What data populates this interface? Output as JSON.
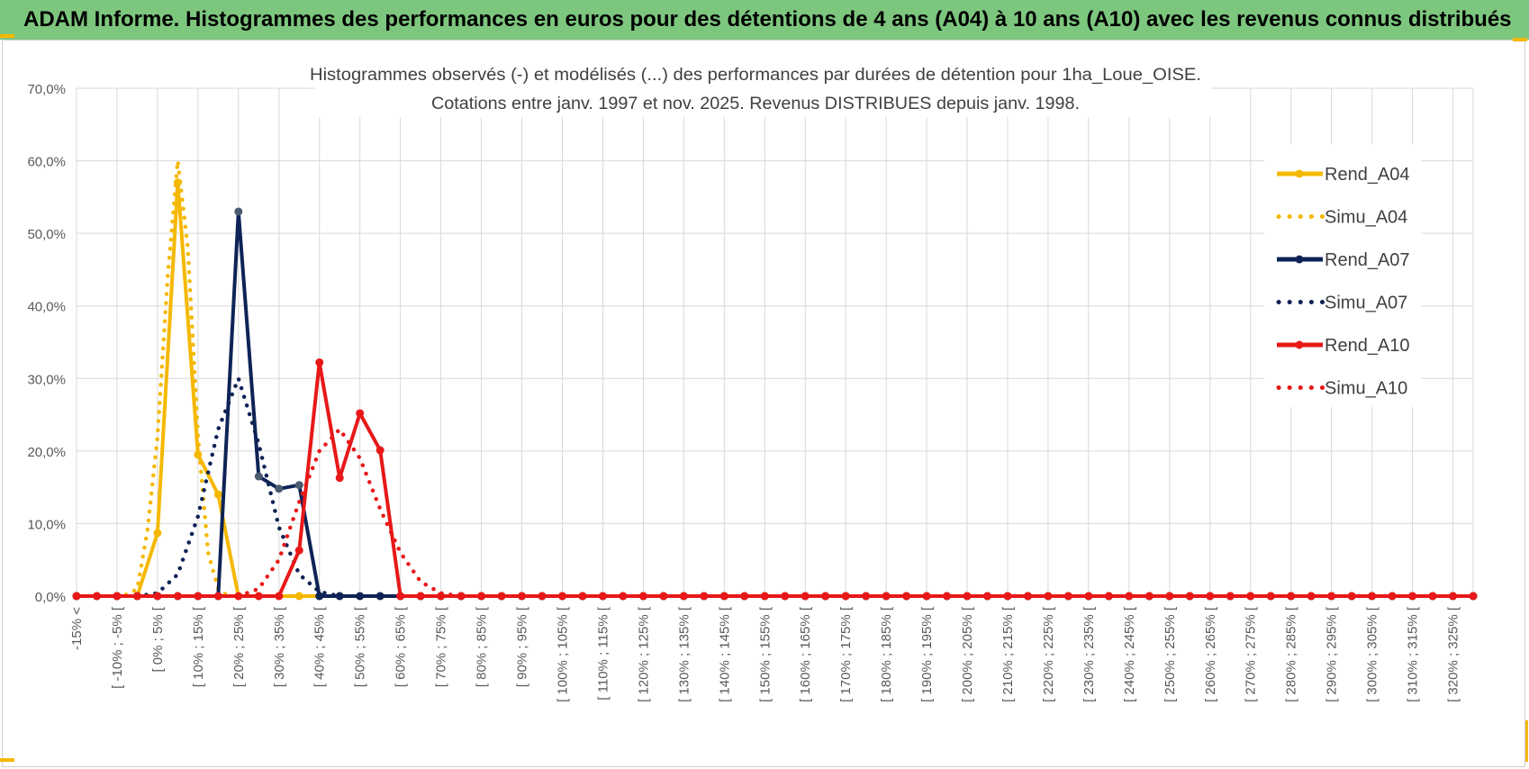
{
  "header": {
    "title": "ADAM Informe. Histogrammes des performances en euros pour des détentions de 4 ans (A04) à 10 ans (A10) avec les revenus connus distribués"
  },
  "colors": {
    "header_bg": "#7dc67e",
    "grid": "#d9d9d9",
    "corner_accent": "#f5b800"
  },
  "chart_data": {
    "type": "line",
    "title_line1": "Histogrammes observés (-) et modélisés (...) des performances par durées de détention pour 1ha_Loue_OISE.",
    "title_line2": "Cotations entre janv. 1997 et nov. 2025. Revenus DISTRIBUES depuis janv. 1998.",
    "ylim": [
      0,
      0.7
    ],
    "y_ticks": [
      0,
      0.1,
      0.2,
      0.3,
      0.4,
      0.5,
      0.6,
      0.7
    ],
    "y_tick_labels": [
      "0,0%",
      "10,0%",
      "20,0%",
      "30,0%",
      "40,0%",
      "50,0%",
      "60,0%",
      "70,0%"
    ],
    "grid": true,
    "legend_position": "right",
    "x_labels": [
      "-15% <",
      "[ -10% ; -5% [",
      "[ 0% ; 5% [",
      "[ 10% ; 15% [",
      "[ 20% ; 25% [",
      "[ 30% ; 35% [",
      "[ 40% ; 45% [",
      "[ 50% ; 55% [",
      "[ 60% ; 65% [",
      "[ 70% ; 75% [",
      "[ 80% ; 85% [",
      "[ 90% ; 95% [",
      "[ 100% ; 105% [",
      "[ 110% ; 115% [",
      "[ 120% ; 125% [",
      "[ 130% ; 135% [",
      "[ 140% ; 145% [",
      "[ 150% ; 155% [",
      "[ 160% ; 165% [",
      "[ 170% ; 175% [",
      "[ 180% ; 185% [",
      "[ 190% ; 195% [",
      "[ 200% ; 205% [",
      "[ 210% ; 215% [",
      "[ 220% ; 225% [",
      "[ 230% ; 235% [",
      "[ 240% ; 245% [",
      "[ 250% ; 255% [",
      "[ 260% ; 265% [",
      "[ 270% ; 275% [",
      "[ 280% ; 285% [",
      "[ 290% ; 295% [",
      "[ 300% ; 305% [",
      "[ 310% ; 315% [",
      "[ 320% ; 325% ["
    ],
    "x_bins": [
      -15,
      -10,
      -5,
      0,
      5,
      10,
      15,
      20,
      25,
      30,
      35,
      40,
      45,
      50,
      55,
      60,
      65,
      70,
      75,
      80,
      85,
      90,
      95,
      100,
      105,
      110,
      115,
      120,
      125,
      130,
      135,
      140,
      145,
      150,
      155,
      160,
      165,
      170,
      175,
      180,
      185,
      190,
      195,
      200,
      205,
      210,
      215,
      220,
      225,
      230,
      235,
      240,
      245,
      250,
      255,
      260,
      265,
      270,
      275,
      280,
      285,
      290,
      295,
      300,
      305,
      310,
      315,
      320,
      325,
      330
    ],
    "series": [
      {
        "name": "Rend_A04",
        "style": "solid",
        "color": "#f5b800",
        "marker": true,
        "points": [
          [
            0,
            0.0
          ],
          [
            5,
            0.087
          ],
          [
            10,
            0.57
          ],
          [
            15,
            0.195
          ],
          [
            20,
            0.14
          ],
          [
            25,
            0.0
          ],
          [
            45,
            0.0
          ]
        ]
      },
      {
        "name": "Simu_A04",
        "style": "dotted",
        "color": "#f5b800",
        "marker": false,
        "points": [
          [
            -5,
            0.0
          ],
          [
            -2,
            0.003
          ],
          [
            0,
            0.01
          ],
          [
            2.5,
            0.09
          ],
          [
            5,
            0.22
          ],
          [
            7.5,
            0.44
          ],
          [
            10,
            0.6
          ],
          [
            12.5,
            0.48
          ],
          [
            15,
            0.22
          ],
          [
            17.5,
            0.06
          ],
          [
            20,
            0.01
          ],
          [
            22.5,
            0.0
          ]
        ]
      },
      {
        "name": "Rend_A07",
        "style": "solid",
        "color": "#0e2356",
        "marker": true,
        "points": [
          [
            20,
            0.0
          ],
          [
            25,
            0.53
          ],
          [
            30,
            0.165
          ],
          [
            35,
            0.148
          ],
          [
            40,
            0.153
          ],
          [
            45,
            0.0
          ],
          [
            50,
            0.0
          ],
          [
            55,
            0.0
          ],
          [
            60,
            0.0
          ],
          [
            65,
            0.0
          ]
        ]
      },
      {
        "name": "Simu_A07",
        "style": "dotted",
        "color": "#0e2356",
        "marker": false,
        "points": [
          [
            0,
            0.0
          ],
          [
            5,
            0.004
          ],
          [
            10,
            0.03
          ],
          [
            15,
            0.11
          ],
          [
            20,
            0.23
          ],
          [
            25,
            0.3
          ],
          [
            30,
            0.21
          ],
          [
            35,
            0.095
          ],
          [
            40,
            0.03
          ],
          [
            45,
            0.006
          ],
          [
            50,
            0.0
          ]
        ]
      },
      {
        "name": "Rend_A10",
        "style": "solid",
        "color": "#e81818",
        "marker": true,
        "points": [
          [
            35,
            0.0
          ],
          [
            40,
            0.063
          ],
          [
            45,
            0.322
          ],
          [
            50,
            0.163
          ],
          [
            55,
            0.252
          ],
          [
            60,
            0.201
          ],
          [
            65,
            0.0
          ]
        ]
      },
      {
        "name": "Simu_A10",
        "style": "dotted",
        "color": "#e81818",
        "marker": false,
        "points": [
          [
            25,
            0.0
          ],
          [
            30,
            0.01
          ],
          [
            35,
            0.05
          ],
          [
            40,
            0.13
          ],
          [
            45,
            0.2
          ],
          [
            50,
            0.23
          ],
          [
            55,
            0.19
          ],
          [
            60,
            0.12
          ],
          [
            65,
            0.06
          ],
          [
            70,
            0.02
          ],
          [
            75,
            0.004
          ],
          [
            80,
            0.0
          ]
        ]
      }
    ]
  }
}
